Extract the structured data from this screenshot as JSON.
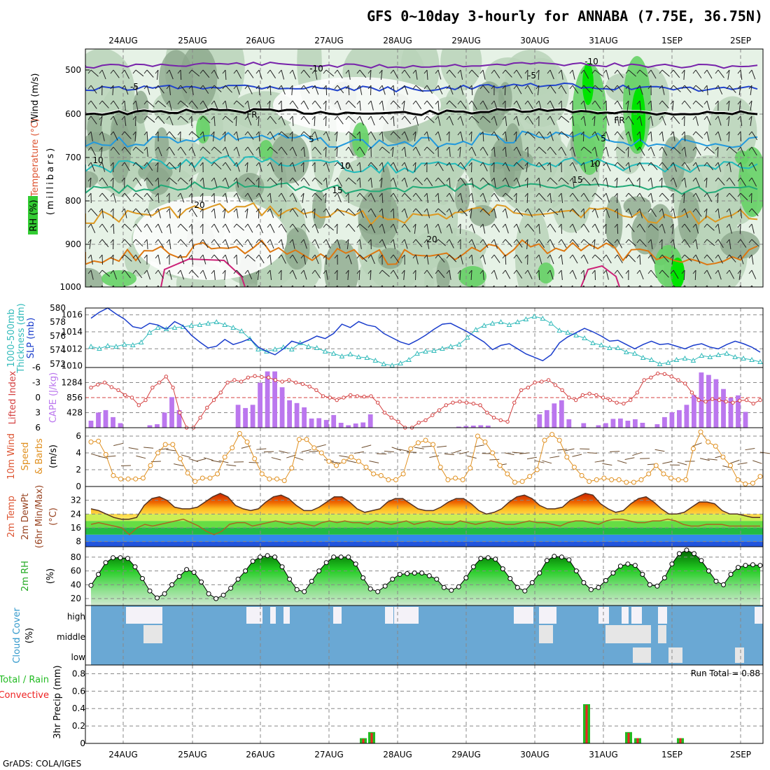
{
  "title": "GFS 0~10day 3-hourly for ANNABA (7.75E, 36.75N)",
  "credit": "GrADS: COLA/IGES",
  "dates": [
    "24AUG",
    "25AUG",
    "26AUG",
    "27AUG",
    "28AUG",
    "29AUG",
    "30AUG",
    "31AUG",
    "1SEP",
    "2SEP"
  ],
  "colors": {
    "rh_light": "#e6f2e6",
    "rh_mid": "#b8d4b8",
    "rh_dark": "#8ca88c",
    "rh_green": "#66d166",
    "rh_bright": "#00e400",
    "slp": "#1a3dcc",
    "thickness": "#33bbbb",
    "cape": "#bb77ee",
    "lifted": "#d44040",
    "wind_speed": "#e09020",
    "barb": "#6b4a2a",
    "temp_line": "#553322",
    "dewpt": "#aa6622",
    "rh_line": "#000000",
    "cloud_bg": "#6aa8d4",
    "cloud_fill": "#e6e6e6",
    "cloud_high": "#f4f2f8",
    "rain": "#22bb22",
    "convective": "#ee2222"
  },
  "panels": {
    "upper": {
      "ylabel_wind": "Wind (m/s)",
      "ylabel_temp": "Temperature (°C)",
      "ylabel_rh": "RH (%)",
      "ylabel_p": "(millibars)",
      "yticks": [
        "500",
        "600",
        "700",
        "800",
        "900",
        "1000"
      ],
      "contour_labels": [
        "-10",
        "-5",
        "5",
        "10",
        "15",
        "20",
        "FR",
        "30"
      ]
    },
    "slp": {
      "ylabel_a": "1000-500mb",
      "ylabel_b": "Thickness (dm)",
      "ylabel_c": "SLP (mb)",
      "left_ticks": [
        "580",
        "578",
        "576",
        "574",
        "572"
      ],
      "right_ticks": [
        "1016",
        "1014",
        "1012",
        "1010"
      ]
    },
    "cape": {
      "ylabel_a": "Lifted Index",
      "ylabel_b": "CAPE (J/kg)",
      "left_ticks": [
        "-6",
        "-3",
        "0",
        "3",
        "6"
      ],
      "right_ticks": [
        "1284",
        "856",
        "428"
      ]
    },
    "wind": {
      "ylabel_a": "10m Wind",
      "ylabel_b": "Speed",
      "ylabel_c": "& Barbs",
      "ylabel_d": "(m/s)",
      "ticks": [
        "6",
        "4",
        "2",
        "0"
      ]
    },
    "temp": {
      "ylabel_a": "2m Temp",
      "ylabel_b": "2m DewPt",
      "ylabel_c": "(6hr Min/Max)",
      "ylabel_d": "(°C)",
      "ticks": [
        "32",
        "24",
        "16",
        "8"
      ]
    },
    "rh": {
      "ylabel_a": "2m RH",
      "ylabel_b": "(%)",
      "ticks": [
        "80",
        "60",
        "40",
        "20"
      ]
    },
    "cloud": {
      "ylabel_a": "Cloud Cover",
      "ylabel_b": "(%)",
      "levels": [
        "high",
        "middle",
        "low"
      ]
    },
    "precip": {
      "ylabel_a": "Total / Rain",
      "ylabel_b": "Convective",
      "ylabel_c": "3hr Precip (mm)",
      "ticks": [
        "0.8",
        "0.6",
        "0.4",
        "0.2",
        "0"
      ],
      "run_total": "Run Total = 0.88"
    }
  },
  "chart_data": [
    {
      "type": "line",
      "title": "1000-500mb Thickness (dm) / SLP (mb)",
      "series": [
        {
          "name": "SLP (mb)",
          "values": [
            1015.6,
            1016.3,
            1016.8,
            1016.1,
            1015.5,
            1014.6,
            1014.4,
            1015.0,
            1014.8,
            1014.3,
            1015.2,
            1014.7,
            1013.6,
            1012.8,
            1012.1,
            1012.3,
            1013.1,
            1012.5,
            1012.8,
            1013.2,
            1012.2,
            1011.7,
            1011.3,
            1012.0,
            1012.9,
            1012.6,
            1013.0,
            1013.5,
            1013.2,
            1013.8,
            1014.9,
            1014.5,
            1015.2,
            1014.8,
            1014.6,
            1013.8,
            1013.3,
            1012.8,
            1012.5,
            1013.0,
            1013.6,
            1014.3,
            1014.9,
            1015.0,
            1014.5,
            1014.0,
            1013.4,
            1012.8,
            1011.9,
            1012.4,
            1012.6,
            1012.0,
            1011.4,
            1011.0,
            1010.6,
            1011.3,
            1012.7,
            1013.4,
            1013.9,
            1014.4,
            1014.0,
            1013.5,
            1012.9,
            1013.0,
            1012.5,
            1012.0,
            1012.5,
            1012.9,
            1012.5,
            1012.6,
            1012.3,
            1012.0,
            1012.4,
            1012.6,
            1012.2,
            1012.0,
            1012.5,
            1012.9,
            1012.6,
            1012.2,
            1011.6
          ]
        },
        {
          "name": "1000-500mb Thickness (dm)",
          "values": [
            574.5,
            574.2,
            574.6,
            574.5,
            574.8,
            574.7,
            575.1,
            576.5,
            577.2,
            577.0,
            577.2,
            577.3,
            577.5,
            577.6,
            577.8,
            578.0,
            577.6,
            577.2,
            576.7,
            575.6,
            574.1,
            573.8,
            574.1,
            574.4,
            574.1,
            575.0,
            574.5,
            574.3,
            573.8,
            573.5,
            573.1,
            573.4,
            573.0,
            572.9,
            572.5,
            572.0,
            571.8,
            572.1,
            572.6,
            573.5,
            573.8,
            573.9,
            574.2,
            574.5,
            574.8,
            575.8,
            576.9,
            577.5,
            577.8,
            578.0,
            577.6,
            578.0,
            578.4,
            578.8,
            578.5,
            577.8,
            576.8,
            576.5,
            576.1,
            575.7,
            575.0,
            574.7,
            574.3,
            574.3,
            573.7,
            573.5,
            572.9,
            572.6,
            572.0,
            572.2,
            572.6,
            572.8,
            572.5,
            573.2,
            573.0,
            573.3,
            573.5,
            573.0,
            572.8,
            572.6,
            572.3
          ]
        }
      ],
      "x": "3-hourly, 24AUG to 2SEP",
      "ylim_left": [
        571.5,
        580
      ],
      "ylim_right": [
        1009.8,
        1016.8
      ]
    },
    {
      "type": "bar",
      "title": "Lifted Index / CAPE (J/kg)",
      "series": [
        {
          "name": "CAPE (J/kg)",
          "values": [
            200,
            430,
            500,
            300,
            130,
            0,
            0,
            0,
            70,
            100,
            430,
            870,
            500,
            0,
            0,
            0,
            0,
            0,
            0,
            0,
            650,
            560,
            650,
            1280,
            1600,
            1600,
            1150,
            780,
            700,
            580,
            260,
            270,
            220,
            360,
            140,
            70,
            120,
            150,
            380,
            0,
            0,
            0,
            0,
            0,
            0,
            0,
            0,
            0,
            0,
            0,
            30,
            50,
            60,
            70,
            60,
            0,
            0,
            0,
            0,
            0,
            0,
            380,
            500,
            690,
            780,
            240,
            0,
            130,
            0,
            70,
            130,
            250,
            260,
            200,
            240,
            140,
            0,
            100,
            300,
            440,
            500,
            650,
            930,
            1570,
            1500,
            1380,
            1100,
            850,
            920,
            450,
            0,
            0
          ]
        },
        {
          "name": "Lifted Index",
          "values": [
            -2,
            -2.6,
            -3,
            -2.1,
            -1.5,
            -0.5,
            0,
            1.5,
            0.5,
            -2,
            -3,
            -4.2,
            -2,
            3,
            6,
            6,
            4,
            2,
            0.5,
            -1,
            -3,
            -3.5,
            -3.2,
            -4,
            -4.3,
            -4.1,
            -4,
            -3.5,
            -3.2,
            -3.5,
            -3,
            -2.7,
            -2.2,
            -1.5,
            -0.3,
            0,
            0.5,
            0,
            -0.5,
            -0.3,
            -0.2,
            -0.3,
            1,
            3,
            4,
            4.8,
            6,
            6,
            5,
            4.5,
            3.5,
            2.5,
            1.5,
            1,
            0.8,
            1,
            1.2,
            1.5,
            3,
            4,
            4.5,
            4.8,
            1,
            -1.5,
            -2,
            -3,
            -3.2,
            -3.5,
            -2.5,
            -1.5,
            0,
            0.5,
            -0.5,
            -0.8,
            -0.5,
            0,
            0.5,
            1,
            1.2,
            0.5,
            -1,
            -3.5,
            -4,
            -4.8,
            -4.7,
            -4.2,
            -3.5,
            -2.8,
            -1,
            0.5,
            0.8,
            0.3,
            0.5,
            0.8,
            1,
            0.6,
            0.5,
            1.2,
            0.5
          ]
        }
      ],
      "ylim_left": [
        6,
        -6
      ],
      "ylim_right": [
        0,
        1712
      ]
    },
    {
      "type": "line",
      "title": "10m Wind Speed & Barbs (m/s)",
      "series": [
        {
          "name": "10m Wind Speed (m/s)",
          "values": [
            5.3,
            5.4,
            3.8,
            1.3,
            0.9,
            0.9,
            0.9,
            1.0,
            2.5,
            4.0,
            5.0,
            5.0,
            3.3,
            1.6,
            0.6,
            1.0,
            1.0,
            1.5,
            3.5,
            4.6,
            6.3,
            5.3,
            3.3,
            1.5,
            0.9,
            0.9,
            0.7,
            2.2,
            5.6,
            5.6,
            4.6,
            4.0,
            3.0,
            2.5,
            3.0,
            3.5,
            3.0,
            2.3,
            1.5,
            1.3,
            0.8,
            0.8,
            1.5,
            4.5,
            5.2,
            5.5,
            5.0,
            2.3,
            0.8,
            1.0,
            0.8,
            2.2,
            6.0,
            5.3,
            4.0,
            2.5,
            1.5,
            0.5,
            0.6,
            1.2,
            2.0,
            5.5,
            6.2,
            5.5,
            3.5,
            2.3,
            1.3,
            0.6,
            0.8,
            1.0,
            0.8,
            0.8,
            0.5,
            0.5,
            0.8,
            1.5,
            2.5,
            1.5,
            1.0,
            0.8,
            0.8,
            4.5,
            6.5,
            5.3,
            4.8,
            3.5,
            2.5,
            0.8,
            0.3,
            0.4,
            1.2
          ]
        }
      ],
      "ylim": [
        0,
        7
      ]
    },
    {
      "type": "area",
      "title": "2m Temp / 2m DewPt (6hr Min/Max) (°C)",
      "series": [
        {
          "name": "2m Temp (°C)",
          "values": [
            27,
            26,
            24,
            22,
            21,
            21,
            22,
            29,
            33,
            34,
            32,
            28,
            27,
            27,
            28,
            31,
            34,
            36,
            34,
            29,
            27,
            26,
            27,
            31,
            34,
            35,
            33,
            29,
            26,
            26,
            28,
            31,
            34,
            34,
            31,
            27,
            25,
            26,
            27,
            31,
            33,
            33,
            30,
            27,
            26,
            26,
            28,
            31,
            33,
            33,
            30,
            26,
            24,
            25,
            27,
            31,
            34,
            35,
            33,
            29,
            27,
            27,
            28,
            32,
            34,
            36,
            35,
            30,
            27,
            25,
            26,
            30,
            33,
            34,
            31,
            27,
            24,
            24,
            25,
            28,
            31,
            31,
            30,
            26,
            24,
            24,
            23,
            22,
            22
          ]
        },
        {
          "name": "2m DewPt (°C)",
          "values": [
            18,
            19,
            18,
            17,
            16,
            12,
            16,
            18,
            17,
            18,
            19,
            20,
            21,
            19,
            17,
            14,
            12,
            14,
            18,
            19,
            19,
            17,
            18,
            19,
            20,
            19,
            18,
            19,
            18,
            17,
            19,
            20,
            19,
            20,
            19,
            19,
            18,
            20,
            19,
            18,
            19,
            20,
            18,
            19,
            20,
            19,
            18,
            18,
            20,
            19,
            18,
            19,
            20,
            19,
            18,
            18,
            19,
            20,
            19,
            19,
            18,
            17,
            19,
            20,
            20,
            19,
            18,
            20,
            21,
            21,
            20,
            19,
            19,
            20,
            20,
            21,
            20,
            18,
            17,
            17,
            18,
            18,
            18,
            17,
            17,
            17,
            17,
            17
          ]
        }
      ],
      "ylim": [
        5,
        40
      ]
    },
    {
      "type": "area",
      "title": "2m RH (%)",
      "series": [
        {
          "name": "2m RH (%)",
          "values": [
            39,
            55,
            72,
            79,
            79,
            78,
            66,
            49,
            31,
            21,
            27,
            40,
            52,
            62,
            58,
            44,
            27,
            20,
            25,
            35,
            48,
            60,
            74,
            80,
            82,
            80,
            66,
            48,
            33,
            30,
            45,
            60,
            72,
            80,
            80,
            80,
            70,
            50,
            34,
            30,
            38,
            48,
            55,
            56,
            57,
            57,
            53,
            48,
            36,
            32,
            37,
            50,
            66,
            78,
            79,
            77,
            63,
            49,
            36,
            31,
            43,
            57,
            75,
            81,
            80,
            76,
            60,
            43,
            33,
            36,
            46,
            57,
            67,
            70,
            68,
            55,
            40,
            38,
            50,
            70,
            85,
            90,
            85,
            75,
            60,
            45,
            40,
            55,
            65,
            68,
            69,
            68
          ]
        }
      ],
      "ylim": [
        10,
        95
      ]
    },
    {
      "type": "heatmap",
      "title": "Cloud Cover (%)",
      "rows": [
        "high",
        "middle",
        "low"
      ],
      "description": "high cloud mostly over 24AUG-25AUG and 30AUG-2SEP; middle/low patches 31AUG-1SEP"
    },
    {
      "type": "bar",
      "title": "3hr Precip (mm)",
      "series": [
        {
          "name": "Total / Rain",
          "x": [
            "27.5",
            "27.6",
            "30.7",
            "31.3",
            "31.4",
            "1.0"
          ],
          "values": [
            0.06,
            0.13,
            0.45,
            0.13,
            0.06,
            0.06
          ]
        },
        {
          "name": "Convective",
          "x": [
            "27.5",
            "27.6",
            "30.7",
            "31.3",
            "31.4",
            "1.0"
          ],
          "values": [
            0.05,
            0.12,
            0.44,
            0.12,
            0.06,
            0.06
          ]
        }
      ],
      "ylim": [
        0,
        0.9
      ]
    }
  ]
}
